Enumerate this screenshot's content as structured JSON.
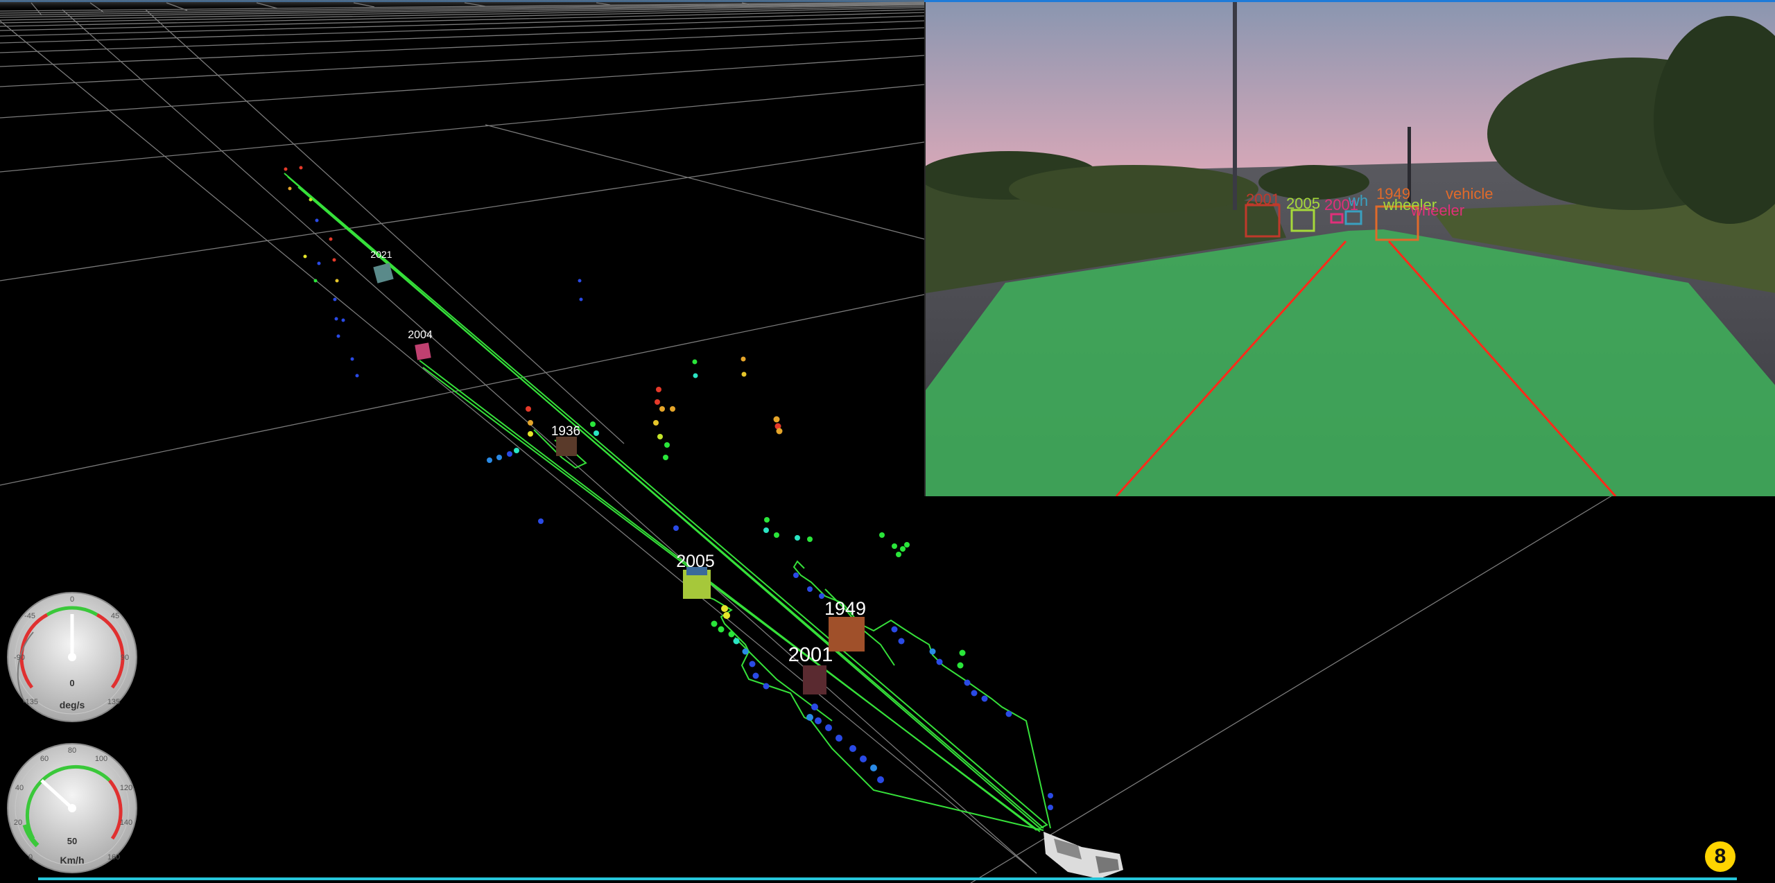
{
  "scene": {
    "track_labels": [
      "2021",
      "2004",
      "1936",
      "2005",
      "1949",
      "2001"
    ]
  },
  "camera": {
    "overlay_labels": [
      "2001",
      "2005",
      "1949",
      "vehicle",
      "wheeler",
      "wheeler",
      "2001",
      "wh"
    ],
    "colors": {
      "drivable_area": "#3fae5a",
      "lane_lines": "#ff2a1a",
      "box_red": "#c0392b",
      "box_lime": "#a6d93a",
      "box_orange": "#e06a2a",
      "box_magenta": "#e0307a"
    }
  },
  "gauges": {
    "yaw_rate": {
      "unit": "deg/s",
      "value_text": "0",
      "ticks": [
        "-135",
        "-90",
        "-45",
        "0",
        "45",
        "90",
        "135"
      ],
      "value": 0
    },
    "speed": {
      "unit": "Km/h",
      "value_text": "50",
      "ticks": [
        "0",
        "20",
        "40",
        "60",
        "80",
        "100",
        "120",
        "140",
        "160"
      ],
      "value": 50
    }
  },
  "badge": {
    "text": "8"
  },
  "colors": {
    "trajectory": "#36e03a",
    "grid": "#8a8a8a",
    "gauge_face": "#d0d0d0",
    "badge": "#ffd400",
    "bottom_bar": "#26c6da"
  }
}
